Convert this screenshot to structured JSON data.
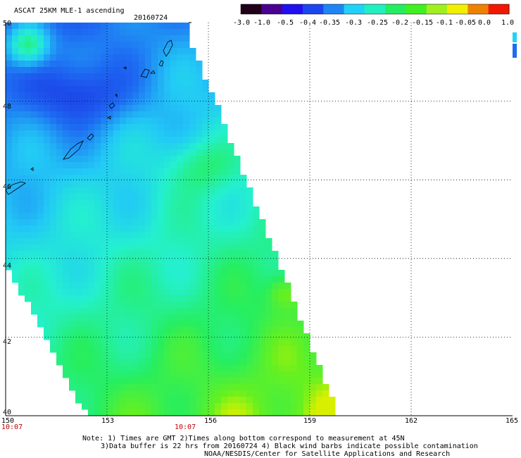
{
  "header": {
    "title": "ASCAT 25KM MLE-1 ascending",
    "date": "20160724"
  },
  "colorbar": {
    "labels": [
      "-3.0",
      "-1.0",
      "-0.5",
      "-0.4",
      "-0.35",
      "-0.3",
      "-0.25",
      "-0.2",
      "-0.15",
      "-0.1",
      "-0.05",
      "0.0",
      "1.0"
    ],
    "colors": [
      "#200018",
      "#4a0090",
      "#2010f0",
      "#1a46f0",
      "#1e86f4",
      "#20d2f8",
      "#20f0c0",
      "#24ee60",
      "#40f020",
      "#a0f020",
      "#f0f000",
      "#f08000",
      "#f01800"
    ]
  },
  "map": {
    "lat_labels": [
      "50",
      "48",
      "46",
      "44",
      "42",
      "40"
    ],
    "lon_labels": [
      "150",
      "153",
      "156",
      "159",
      "162",
      "165"
    ],
    "time_labels": [
      "10:07",
      "10:07"
    ],
    "extent": {
      "lon_min": 150,
      "lon_max": 165,
      "lat_min": 40,
      "lat_max": 50
    }
  },
  "footer": {
    "line1": "Note: 1) Times are GMT 2)Times along bottom correspond to measurement at 45N",
    "line2": "3)Data buffer is 22 hrs from 20160724 4) Black wind barbs indicate possible contamination",
    "line3": "NOAA/NESDIS/Center for Satellite Applications and Research"
  }
}
